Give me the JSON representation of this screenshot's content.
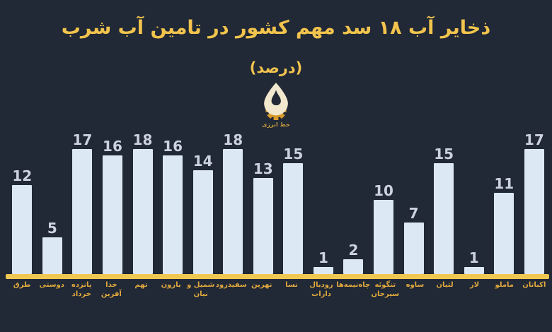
{
  "title": "ذخایر آب ۱۸ سد مهم کشور در تامین آب شرب",
  "subtitle": "(درصد)",
  "logo": {
    "caption": "خط انرژی"
  },
  "colors": {
    "background": "#212836",
    "title_gold": "#f2c44d",
    "bar_fill": "#dce8f4",
    "value_label": "#ccd3df",
    "axis_gold": "#f0c851",
    "category_gold": "#e0a93d",
    "logo_gear_gold": "#d79a2b",
    "logo_drop_cream": "#f1e8cd"
  },
  "chart_data": {
    "type": "bar",
    "title": "ذخایر آب ۱۸ سد مهم کشور در تامین آب شرب",
    "subtitle": "(درصد)",
    "ylabel": "درصد",
    "xlabel": "",
    "ylim": [
      0,
      18
    ],
    "grid": false,
    "legend": false,
    "direction": "rtl-labels, bars listed left-to-right as rendered",
    "value_labels_shown": true,
    "categories": [
      "طرق",
      "دوستی",
      "پانزده خرداد",
      "خدا آفرین",
      "تهم",
      "بارون",
      "شمیل و نیان",
      "سفیدرود",
      "نهرین",
      "نسا",
      "رودبال\nداراب",
      "چاه‌نیمه‌ها",
      "تنگوئه\nسیرجان",
      "ساوه",
      "لتیان",
      "لار",
      "ماملو",
      "اکباتان"
    ],
    "values": [
      12,
      5,
      17,
      16,
      18,
      16,
      14,
      18,
      13,
      15,
      1,
      2,
      10,
      7,
      15,
      1,
      11,
      17
    ]
  }
}
